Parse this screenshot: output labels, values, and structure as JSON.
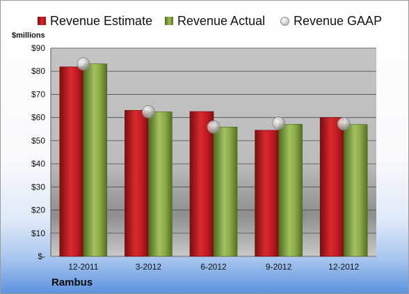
{
  "legend": {
    "estimate": "Revenue Estimate",
    "actual": "Revenue Actual",
    "gaap": "Revenue GAAP"
  },
  "unit_label": "$millions",
  "company": "Rambus",
  "colors": {
    "estimate": "#c81e24",
    "actual": "#8aab48",
    "gaap": "#c0c0c0",
    "plot_background": "#bdbdbd"
  },
  "chart_data": {
    "type": "bar",
    "categories": [
      "12-2011",
      "3-2012",
      "6-2012",
      "9-2012",
      "12-2012"
    ],
    "series": [
      {
        "name": "Revenue Estimate",
        "kind": "bar",
        "values": [
          81.9,
          63.1,
          62.6,
          54.5,
          60.0
        ]
      },
      {
        "name": "Revenue Actual",
        "kind": "bar",
        "values": [
          83.2,
          62.5,
          55.9,
          57.1,
          57.0
        ]
      },
      {
        "name": "Revenue GAAP",
        "kind": "marker",
        "values": [
          83.2,
          62.5,
          55.9,
          57.6,
          57.3
        ]
      }
    ],
    "ylabel": "$millions",
    "ylim": [
      0,
      90
    ],
    "yticks": [
      0,
      10,
      20,
      30,
      40,
      50,
      60,
      70,
      80,
      90
    ],
    "ytick_labels": [
      "$-",
      "$10",
      "$20",
      "$30",
      "$40",
      "$50",
      "$60",
      "$70",
      "$80",
      "$90"
    ],
    "grid": true,
    "legend_position": "top"
  }
}
